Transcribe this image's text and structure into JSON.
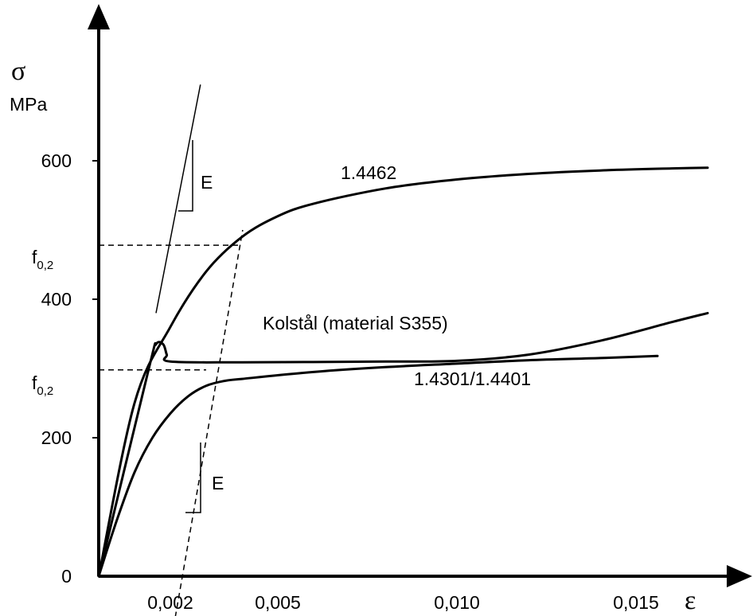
{
  "chart_data": {
    "type": "line",
    "title": "",
    "ylabel": "σ",
    "yunit": "MPa",
    "xlabel": "ε",
    "xlim": [
      0,
      0.0172
    ],
    "ylim": [
      0,
      600
    ],
    "x_ticks": [
      {
        "value": 0.002,
        "label": "0,002"
      },
      {
        "value": 0.005,
        "label": "0,005"
      },
      {
        "value": 0.01,
        "label": "0,010"
      },
      {
        "value": 0.015,
        "label": "0,015"
      }
    ],
    "y_ticks": [
      {
        "value": 0,
        "label": "0"
      },
      {
        "value": 200,
        "label": "200"
      },
      {
        "value": 400,
        "label": "400"
      },
      {
        "value": 600,
        "label": "600"
      }
    ],
    "series": [
      {
        "name": "1.4462",
        "x": [
          0,
          0.001,
          0.002,
          0.003,
          0.004,
          0.005,
          0.006,
          0.008,
          0.01,
          0.012,
          0.014,
          0.016,
          0.017
        ],
        "y": [
          0,
          250,
          360,
          440,
          490,
          520,
          538,
          560,
          573,
          581,
          586,
          589,
          590
        ]
      },
      {
        "name": "Kolstål (material S355)",
        "x": [
          0,
          0.0014,
          0.0016,
          0.0018,
          0.0019,
          0.002,
          0.004,
          0.008,
          0.01,
          0.012,
          0.014,
          0.016,
          0.017
        ],
        "y": [
          0,
          300,
          335,
          335,
          320,
          310,
          309,
          310,
          311,
          320,
          340,
          367,
          380
        ]
      },
      {
        "name": "1.4301/1.4401",
        "x": [
          0,
          0.0005,
          0.001,
          0.0015,
          0.002,
          0.0025,
          0.003,
          0.0035,
          0.004,
          0.006,
          0.008,
          0.01,
          0.012,
          0.014,
          0.0156
        ],
        "y": [
          0,
          80,
          150,
          200,
          235,
          260,
          275,
          282,
          285,
          295,
          302,
          307,
          312,
          315,
          318
        ]
      }
    ],
    "reference_lines": [
      {
        "type": "offset_modulus",
        "x": [
          0.002,
          0.00402
        ],
        "y": [
          -100,
          500
        ],
        "style": "dashed"
      },
      {
        "type": "modulus",
        "x": [
          0.0016,
          0.00284
        ],
        "y": [
          380,
          710
        ],
        "style": "solid"
      },
      {
        "type": "proof_stress",
        "label": "f0,2",
        "value": 478,
        "x_end": 0.004
      },
      {
        "type": "proof_stress",
        "label": "f0,2",
        "value": 298,
        "x_end": 0.003
      }
    ],
    "annotations": {
      "modulus_upper": "E",
      "modulus_lower": "E",
      "f_upper_main": "f",
      "f_upper_sub": "0,2",
      "f_lower_main": "f",
      "f_lower_sub": "0,2",
      "series_labels": [
        "1.4462",
        "Kolstål (material S355)",
        "1.4301/1.4401"
      ]
    }
  }
}
